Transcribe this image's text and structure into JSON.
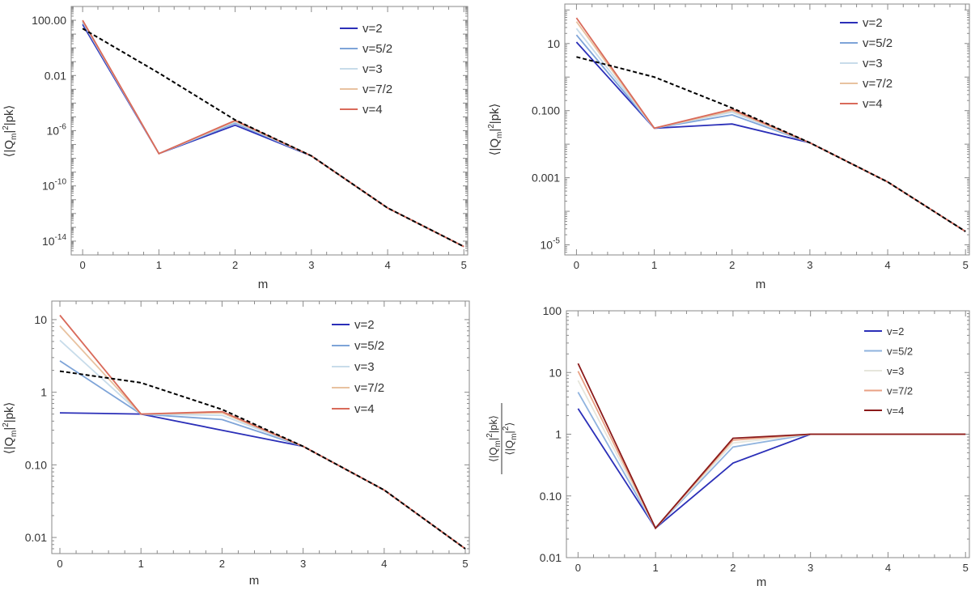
{
  "colors": {
    "series": [
      "#2b2fb8",
      "#7ea4d8",
      "#c8dcea",
      "#e8c2a0",
      "#d96a5a"
    ],
    "series_panel4": [
      "#2b2fb8",
      "#8fb3de",
      "#e6e6dc",
      "#e9a184",
      "#8b1a1a"
    ],
    "dashed": "#000000",
    "frame": "#8a8a8a",
    "text": "#333333"
  },
  "chart_data": [
    {
      "type": "line",
      "yscale": "log",
      "ylim": [
        1e-15,
        1000
      ],
      "xlim": [
        -0.15,
        5.05
      ],
      "xticks": [
        0,
        1,
        2,
        3,
        4,
        5
      ],
      "xtick_labels": [
        "0",
        "1",
        "2",
        "3",
        "4",
        "5"
      ],
      "yticks": [
        100,
        0.01,
        1e-06,
        1e-10,
        1e-14
      ],
      "ytick_labels": [
        "100.00",
        "0.01",
        "10^-6",
        "10^-10",
        "10^-14"
      ],
      "xlabel": "m",
      "ylabel_parts": [
        "⟨|Q",
        "m",
        "|",
        "2",
        "|pk⟩"
      ],
      "legend_position": "top-right",
      "x": [
        0,
        1,
        2,
        3,
        4,
        5
      ],
      "series": [
        {
          "name": "v=2",
          "values": [
            50,
            2.2e-08,
            2.5e-06,
            1.5e-08,
            2.5e-12,
            4e-15
          ]
        },
        {
          "name": "v=5/2",
          "values": [
            72,
            2.2e-08,
            3.5e-06,
            1.5e-08,
            2.5e-12,
            4e-15
          ]
        },
        {
          "name": "v=3",
          "values": [
            85,
            2.2e-08,
            4.3e-06,
            1.5e-08,
            2.5e-12,
            4e-15
          ]
        },
        {
          "name": "v=7/2",
          "values": [
            95,
            2.2e-08,
            5e-06,
            1.5e-08,
            2.5e-12,
            4e-15
          ]
        },
        {
          "name": "v=4",
          "values": [
            100,
            2.2e-08,
            5.5e-06,
            1.5e-08,
            2.5e-12,
            4e-15
          ]
        }
      ],
      "dashed": {
        "name": "",
        "values": [
          25,
          0.015,
          6e-06,
          1.5e-08,
          2.5e-12,
          4e-15
        ]
      }
    },
    {
      "type": "line",
      "yscale": "log",
      "ylim": [
        5e-06,
        150
      ],
      "xlim": [
        -0.15,
        5.05
      ],
      "xticks": [
        0,
        1,
        2,
        3,
        4,
        5
      ],
      "xtick_labels": [
        "0",
        "1",
        "2",
        "3",
        "4",
        "5"
      ],
      "yticks": [
        10,
        0.1,
        0.001,
        1e-05
      ],
      "ytick_labels": [
        "10",
        "0.100",
        "0.001",
        "10^-5"
      ],
      "xlabel": "m",
      "ylabel_parts": [
        "⟨|Q",
        "m",
        "|",
        "2",
        "|pk⟩"
      ],
      "legend_position": "top-right",
      "x": [
        0,
        1,
        2,
        3,
        4,
        5
      ],
      "series": [
        {
          "name": "v=2",
          "values": [
            11,
            0.03,
            0.04,
            0.011,
            0.00075,
            2.5e-05
          ]
        },
        {
          "name": "v=5/2",
          "values": [
            18,
            0.03,
            0.075,
            0.011,
            0.00075,
            2.5e-05
          ]
        },
        {
          "name": "v=3",
          "values": [
            28,
            0.03,
            0.09,
            0.011,
            0.00075,
            2.5e-05
          ]
        },
        {
          "name": "v=7/2",
          "values": [
            45,
            0.03,
            0.1,
            0.011,
            0.00075,
            2.5e-05
          ]
        },
        {
          "name": "v=4",
          "values": [
            58,
            0.03,
            0.11,
            0.011,
            0.00075,
            2.5e-05
          ]
        }
      ],
      "dashed": {
        "name": "",
        "values": [
          4,
          1,
          0.12,
          0.011,
          0.00075,
          2.5e-05
        ]
      }
    },
    {
      "type": "line",
      "yscale": "log",
      "ylim": [
        0.006,
        18
      ],
      "xlim": [
        -0.1,
        5.05
      ],
      "xticks": [
        0,
        1,
        2,
        3,
        4,
        5
      ],
      "xtick_labels": [
        "0",
        "1",
        "2",
        "3",
        "4",
        "5"
      ],
      "yticks": [
        10,
        1,
        0.1,
        0.01
      ],
      "ytick_labels": [
        "10",
        "1",
        "0.10",
        "0.01"
      ],
      "xlabel": "m",
      "ylabel_parts": [
        "⟨|Q",
        "m",
        "|",
        "2",
        "|pk⟩"
      ],
      "legend_position": "top-right",
      "x": [
        0,
        1,
        2,
        3,
        4,
        5
      ],
      "series": [
        {
          "name": "v=2",
          "values": [
            0.52,
            0.5,
            0.3,
            0.18,
            0.045,
            0.007
          ]
        },
        {
          "name": "v=5/2",
          "values": [
            2.7,
            0.5,
            0.42,
            0.18,
            0.045,
            0.007
          ]
        },
        {
          "name": "v=3",
          "values": [
            5.2,
            0.5,
            0.48,
            0.18,
            0.045,
            0.007
          ]
        },
        {
          "name": "v=7/2",
          "values": [
            8.2,
            0.5,
            0.52,
            0.18,
            0.045,
            0.007
          ]
        },
        {
          "name": "v=4",
          "values": [
            11.5,
            0.5,
            0.54,
            0.18,
            0.045,
            0.007
          ]
        }
      ],
      "dashed": {
        "name": "",
        "values": [
          1.95,
          1.35,
          0.58,
          0.18,
          0.045,
          0.007
        ]
      }
    },
    {
      "type": "line",
      "yscale": "log",
      "ylim": [
        0.01,
        100
      ],
      "xlim": [
        -0.15,
        5.05
      ],
      "xticks": [
        0,
        1,
        2,
        3,
        4,
        5
      ],
      "xtick_labels": [
        "0",
        "1",
        "2",
        "3",
        "4",
        "5"
      ],
      "yticks": [
        100,
        10,
        1,
        0.1,
        0.01
      ],
      "ytick_labels": [
        "100",
        "10",
        "1",
        "0.10",
        "0.01"
      ],
      "xlabel": "m",
      "ylabel_num_parts": [
        "⟨|Q",
        "m",
        "|",
        "2",
        "|pk⟩"
      ],
      "ylabel_den_parts": [
        "⟨|Q",
        "m",
        "|",
        "2",
        "⟩"
      ],
      "legend_position": "top-right",
      "x": [
        0,
        1,
        2,
        3,
        4,
        5
      ],
      "series": [
        {
          "name": "v=2",
          "values": [
            2.6,
            0.03,
            0.34,
            1,
            1,
            1
          ]
        },
        {
          "name": "v=5/2",
          "values": [
            4.8,
            0.03,
            0.62,
            1,
            1,
            1
          ]
        },
        {
          "name": "v=3",
          "values": [
            7.4,
            0.03,
            0.72,
            1,
            1,
            1
          ]
        },
        {
          "name": "v=7/2",
          "values": [
            10.5,
            0.03,
            0.8,
            1,
            1,
            1
          ]
        },
        {
          "name": "v=4",
          "values": [
            14,
            0.03,
            0.86,
            1,
            1,
            1
          ]
        }
      ]
    }
  ]
}
